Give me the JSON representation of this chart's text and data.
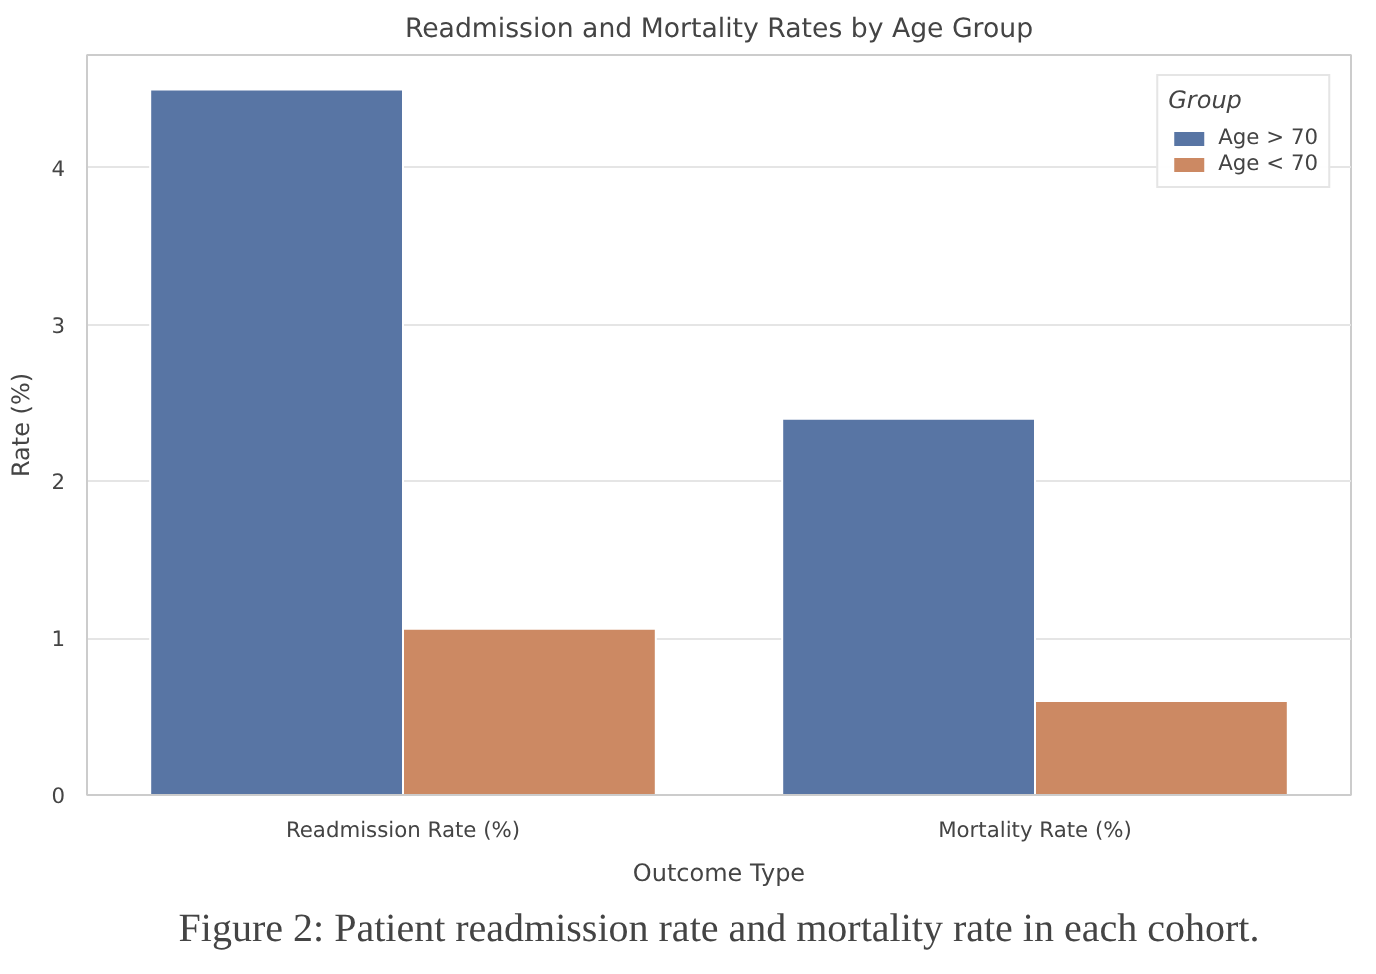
{
  "chart_data": {
    "type": "bar",
    "title": "Readmission and Mortality Rates by Age Group",
    "xlabel": "Outcome Type",
    "ylabel": "Rate (%)",
    "legend_title": "Group",
    "categories": [
      "Readmission Rate (%)",
      "Mortality Rate (%)"
    ],
    "series": [
      {
        "name": "Age > 70",
        "color": "#5875a4",
        "values": [
          4.5,
          2.4
        ]
      },
      {
        "name": "Age < 70",
        "color": "#cc8963",
        "values": [
          1.06,
          0.6
        ]
      }
    ],
    "ylim": [
      0,
      4.72
    ],
    "yticks": [
      0,
      1,
      2,
      3,
      4
    ],
    "grid": "y",
    "legend": "top right",
    "annotations": [
      "Figure 2: Patient readmission rate and mortality rate in each cohort."
    ]
  }
}
